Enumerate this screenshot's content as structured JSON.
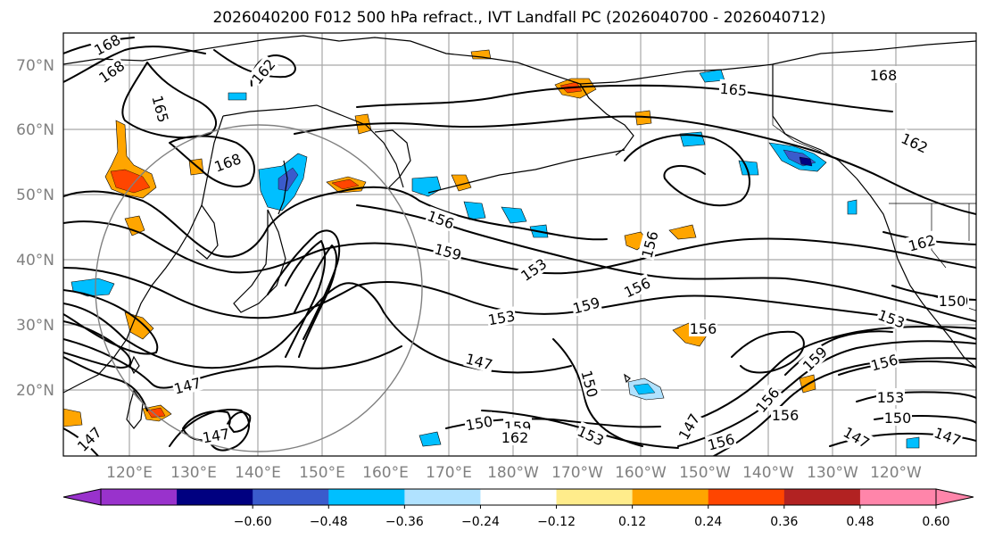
{
  "title": "2026040200 F012 500 hPa refract., IVT Landfall PC (2026040700 - 2026040712)",
  "lat_labels": [
    "70°N",
    "60°N",
    "50°N",
    "40°N",
    "30°N",
    "20°N"
  ],
  "lon_labels": [
    "120°E",
    "130°E",
    "140°E",
    "150°E",
    "160°E",
    "170°E",
    "180°W",
    "170°W",
    "160°W",
    "150°W",
    "140°W",
    "130°W",
    "120°W"
  ],
  "colorbar": {
    "colors": [
      "#9932CC",
      "#000080",
      "#3A5BCC",
      "#00BFFF",
      "#B0E2FF",
      "#FFFFFF",
      "#FFEC8B",
      "#FFA500",
      "#FF4500",
      "#B22222",
      "#FF85AA"
    ],
    "tick_labels": [
      "−0.60",
      "−0.48",
      "−0.36",
      "−0.24",
      "−0.12",
      "0.12",
      "0.24",
      "0.36",
      "0.48",
      "0.60"
    ],
    "extend": "both"
  },
  "contour_labels": [
    {
      "text": "168",
      "angle": -28
    },
    {
      "text": "168",
      "angle": -35
    },
    {
      "text": "162",
      "angle": -50
    },
    {
      "text": "165",
      "angle": 75
    },
    {
      "text": "168",
      "angle": -20
    },
    {
      "text": "165",
      "angle": 5
    },
    {
      "text": "168",
      "angle": 0
    },
    {
      "text": "162",
      "angle": 25
    },
    {
      "text": "156",
      "angle": 20
    },
    {
      "text": "159",
      "angle": 15
    },
    {
      "text": "153",
      "angle": -35
    },
    {
      "text": "156",
      "angle": -75
    },
    {
      "text": "156",
      "angle": -25
    },
    {
      "text": "159",
      "angle": -15
    },
    {
      "text": "153",
      "angle": -10
    },
    {
      "text": "162",
      "angle": -15
    },
    {
      "text": "150",
      "angle": 0
    },
    {
      "text": "153",
      "angle": 20
    },
    {
      "text": "147",
      "angle": 15
    },
    {
      "text": "150",
      "angle": 75
    },
    {
      "text": "156",
      "angle": 0
    },
    {
      "text": "159",
      "angle": -45
    },
    {
      "text": "156",
      "angle": -15
    },
    {
      "text": "153",
      "angle": 0
    },
    {
      "text": "150",
      "angle": 0
    },
    {
      "text": "147",
      "angle": -15
    },
    {
      "text": "147",
      "angle": -45
    },
    {
      "text": "147",
      "angle": -10
    },
    {
      "text": "147",
      "angle": 30
    },
    {
      "text": "147",
      "angle": 20
    },
    {
      "text": "150",
      "angle": -10
    },
    {
      "text": "159",
      "angle": 0
    },
    {
      "text": "162",
      "angle": 0
    },
    {
      "text": "153",
      "angle": 25
    },
    {
      "text": "156",
      "angle": -15
    },
    {
      "text": "147",
      "angle": -60
    },
    {
      "text": "156",
      "angle": 0
    },
    {
      "text": "150",
      "angle": 0
    },
    {
      "text": "156",
      "angle": -50
    }
  ]
}
